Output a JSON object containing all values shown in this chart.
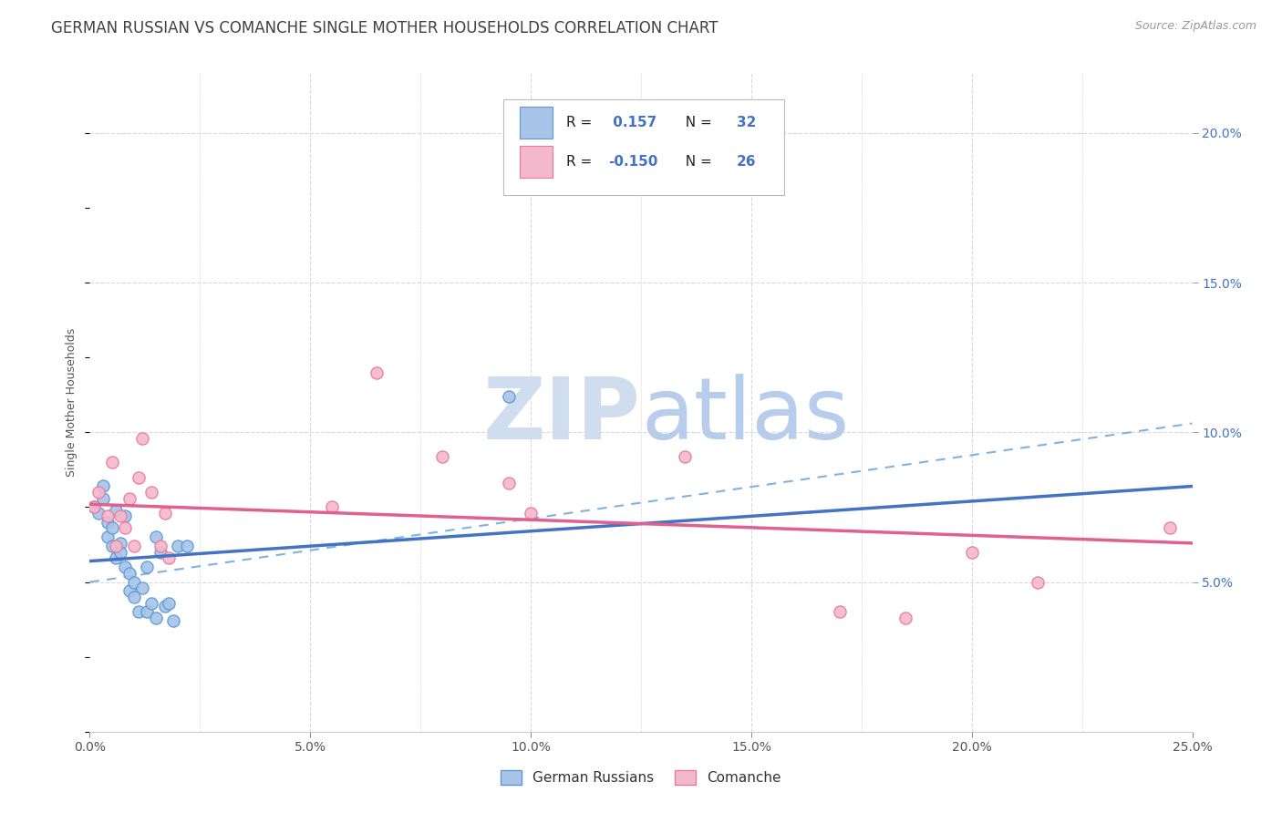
{
  "title": "GERMAN RUSSIAN VS COMANCHE SINGLE MOTHER HOUSEHOLDS CORRELATION CHART",
  "source": "Source: ZipAtlas.com",
  "ylabel": "Single Mother Households",
  "xlim": [
    0.0,
    0.25
  ],
  "ylim": [
    0.0,
    0.22
  ],
  "xtick_labels": [
    "0.0%",
    "",
    "5.0%",
    "",
    "10.0%",
    "",
    "15.0%",
    "",
    "20.0%",
    "",
    "25.0%"
  ],
  "xtick_vals": [
    0.0,
    0.025,
    0.05,
    0.075,
    0.1,
    0.125,
    0.15,
    0.175,
    0.2,
    0.225,
    0.25
  ],
  "xtick_labels_shown": [
    "0.0%",
    "5.0%",
    "10.0%",
    "15.0%",
    "20.0%",
    "25.0%"
  ],
  "xtick_vals_shown": [
    0.0,
    0.05,
    0.1,
    0.15,
    0.2,
    0.25
  ],
  "ytick_labels_right": [
    "5.0%",
    "10.0%",
    "15.0%",
    "20.0%"
  ],
  "ytick_vals_right": [
    0.05,
    0.1,
    0.15,
    0.2
  ],
  "background_color": "#ffffff",
  "grid_color": "#d9d9d9",
  "blue_fill": "#a8c4e8",
  "pink_fill": "#f4b8cc",
  "blue_edge": "#5b9bd5",
  "pink_edge": "#e87b9a",
  "blue_line_color": "#4472c4",
  "pink_line_color": "#e06090",
  "dashed_line_color": "#7fb3e0",
  "title_color": "#404040",
  "source_color": "#999999",
  "legend_text_color": "#4472c4",
  "R_blue": 0.157,
  "N_blue": 32,
  "R_pink": -0.15,
  "N_pink": 26,
  "blue_scatter_x": [
    0.001,
    0.002,
    0.003,
    0.003,
    0.004,
    0.004,
    0.005,
    0.005,
    0.006,
    0.006,
    0.007,
    0.007,
    0.008,
    0.008,
    0.009,
    0.009,
    0.01,
    0.01,
    0.011,
    0.012,
    0.013,
    0.013,
    0.014,
    0.015,
    0.015,
    0.016,
    0.017,
    0.018,
    0.019,
    0.02,
    0.022,
    0.095
  ],
  "blue_scatter_y": [
    0.075,
    0.073,
    0.082,
    0.078,
    0.07,
    0.065,
    0.062,
    0.068,
    0.074,
    0.058,
    0.063,
    0.06,
    0.055,
    0.072,
    0.047,
    0.053,
    0.045,
    0.05,
    0.04,
    0.048,
    0.055,
    0.04,
    0.043,
    0.038,
    0.065,
    0.06,
    0.042,
    0.043,
    0.037,
    0.062,
    0.062,
    0.112
  ],
  "pink_scatter_x": [
    0.001,
    0.002,
    0.004,
    0.005,
    0.006,
    0.007,
    0.008,
    0.009,
    0.01,
    0.011,
    0.012,
    0.014,
    0.016,
    0.017,
    0.018,
    0.055,
    0.065,
    0.08,
    0.095,
    0.1,
    0.135,
    0.17,
    0.185,
    0.2,
    0.215,
    0.245
  ],
  "pink_scatter_y": [
    0.075,
    0.08,
    0.072,
    0.09,
    0.062,
    0.072,
    0.068,
    0.078,
    0.062,
    0.085,
    0.098,
    0.08,
    0.062,
    0.073,
    0.058,
    0.075,
    0.12,
    0.092,
    0.083,
    0.073,
    0.092,
    0.04,
    0.038,
    0.06,
    0.05,
    0.068
  ],
  "blue_line_x": [
    0.0,
    0.25
  ],
  "blue_line_y": [
    0.057,
    0.082
  ],
  "pink_line_x": [
    0.0,
    0.25
  ],
  "pink_line_y": [
    0.076,
    0.063
  ],
  "dashed_line_x": [
    0.0,
    0.25
  ],
  "dashed_line_y": [
    0.05,
    0.103
  ],
  "watermark_zip": "ZIP",
  "watermark_atlas": "atlas",
  "watermark_color": "#d0dcf0",
  "title_fontsize": 12,
  "axis_label_fontsize": 9,
  "tick_fontsize": 10,
  "source_fontsize": 9
}
